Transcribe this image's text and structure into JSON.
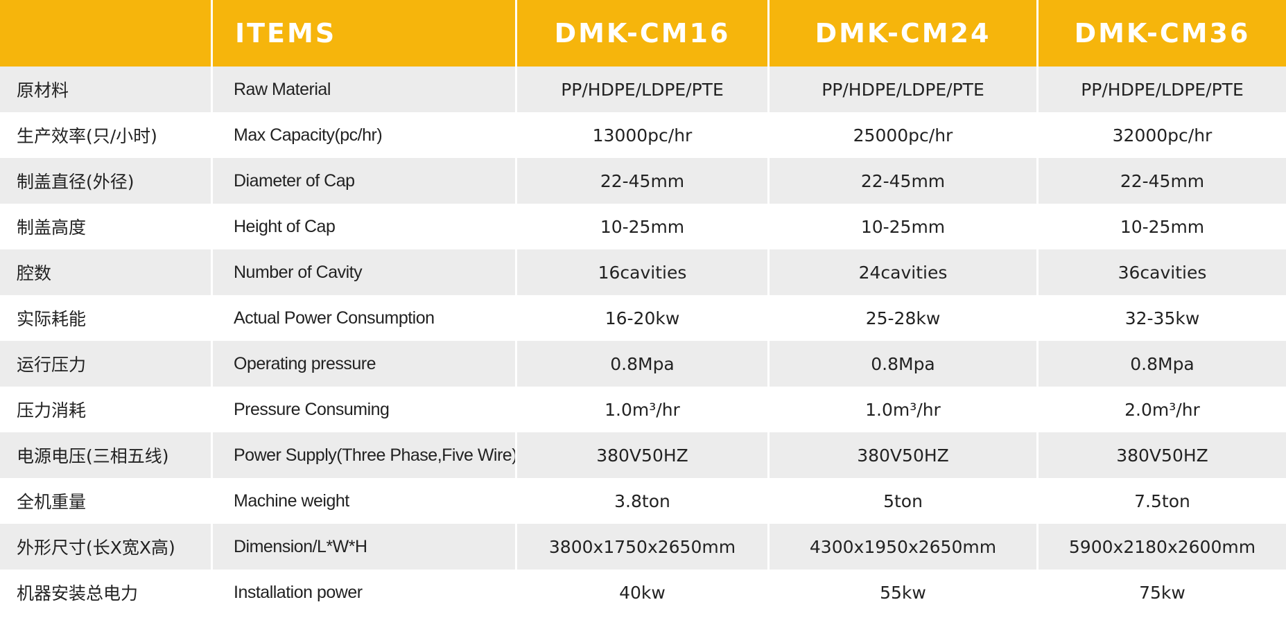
{
  "header": {
    "items": "ITEMS",
    "models": [
      "DMK-CM16",
      "DMK-CM24",
      "DMK-CM36"
    ]
  },
  "rows": [
    {
      "cn": "原材料",
      "en": "Raw Material",
      "values": [
        "PP/HDPE/LDPE/PTE",
        "PP/HDPE/LDPE/PTE",
        "PP/HDPE/LDPE/PTE"
      ]
    },
    {
      "cn": "生产效率(只/小时)",
      "en": "Max Capacity(pc/hr)",
      "values": [
        "13000pc/hr",
        "25000pc/hr",
        "32000pc/hr"
      ]
    },
    {
      "cn": "制盖直径(外径)",
      "en": "Diameter of Cap",
      "values": [
        "22-45mm",
        "22-45mm",
        "22-45mm"
      ]
    },
    {
      "cn": "制盖高度",
      "en": "Height of Cap",
      "values": [
        "10-25mm",
        "10-25mm",
        "10-25mm"
      ]
    },
    {
      "cn": "腔数",
      "en": "Number of Cavity",
      "values": [
        "16cavities",
        "24cavities",
        "36cavities"
      ]
    },
    {
      "cn": "实际耗能",
      "en": "Actual Power Consumption",
      "values": [
        "16-20kw",
        "25-28kw",
        "32-35kw"
      ]
    },
    {
      "cn": "运行压力",
      "en": "Operating pressure",
      "values": [
        "0.8Mpa",
        "0.8Mpa",
        "0.8Mpa"
      ]
    },
    {
      "cn": "压力消耗",
      "en": "Pressure Consuming",
      "values": [
        "1.0m³/hr",
        "1.0m³/hr",
        "2.0m³/hr"
      ]
    },
    {
      "cn": "电源电压(三相五线)",
      "en": "Power Supply(Three Phase,Five Wire)",
      "values": [
        "380V50HZ",
        "380V50HZ",
        "380V50HZ"
      ]
    },
    {
      "cn": "全机重量",
      "en": "Machine weight",
      "values": [
        "3.8ton",
        "5ton",
        "7.5ton"
      ]
    },
    {
      "cn": "外形尺寸(长X宽X高)",
      "en": "Dimension/L*W*H",
      "values": [
        "3800x1750x2650mm",
        "4300x1950x2650mm",
        "5900x2180x2600mm"
      ]
    },
    {
      "cn": "机器安装总电力",
      "en": "Installation power",
      "values": [
        "40kw",
        "55kw",
        "75kw"
      ]
    }
  ]
}
